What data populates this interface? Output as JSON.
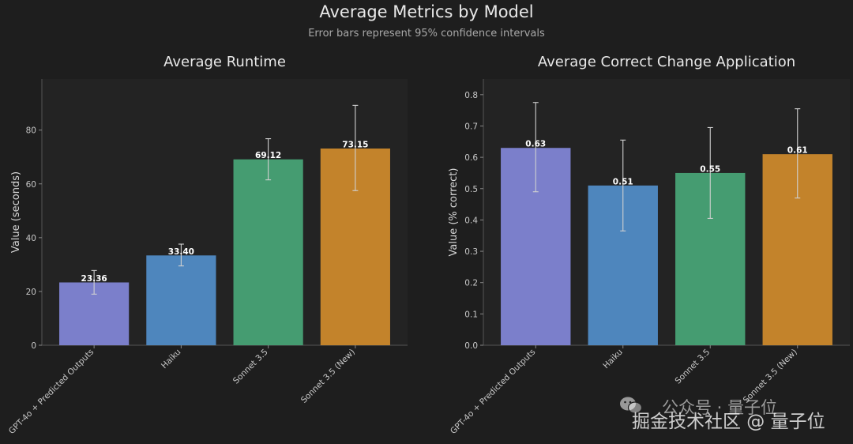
{
  "figure": {
    "title": "Average Metrics by Model",
    "subtitle": "Error bars represent 95% confidence intervals"
  },
  "colors": {
    "background": "#1e1e1e",
    "plot_bg": "#232323",
    "bars": [
      "#7b7fcb",
      "#4e86bd",
      "#459c71",
      "#c3832b"
    ],
    "errorbar": "#d0d0d0",
    "axis": "#555555",
    "text": "#c8c8c8"
  },
  "chart_data": [
    {
      "type": "bar",
      "title": "Average Runtime",
      "xlabel": "",
      "ylabel": "Value (seconds)",
      "categories": [
        "GPT-4o + Predicted Outputs",
        "Haiku",
        "Sonnet 3.5",
        "Sonnet 3.5 (New)"
      ],
      "values": [
        23.36,
        33.4,
        69.12,
        73.15
      ],
      "value_labels": [
        "23.36",
        "33.40",
        "69.12",
        "73.15"
      ],
      "error_low": [
        19.0,
        29.5,
        61.5,
        57.5
      ],
      "error_high": [
        27.8,
        37.6,
        76.8,
        89.2
      ],
      "ylim": [
        0,
        99
      ],
      "yticks": [
        0,
        20,
        40,
        60,
        80
      ],
      "ytick_labels": [
        "0",
        "20",
        "40",
        "60",
        "80"
      ]
    },
    {
      "type": "bar",
      "title": "Average Correct Change Application",
      "xlabel": "",
      "ylabel": "Value (% correct)",
      "categories": [
        "GPT-4o + Predicted Outputs",
        "Haiku",
        "Sonnet 3.5",
        "Sonnet 3.5 (New)"
      ],
      "values": [
        0.63,
        0.51,
        0.55,
        0.61
      ],
      "value_labels": [
        "0.63",
        "0.51",
        "0.55",
        "0.61"
      ],
      "error_low": [
        0.49,
        0.365,
        0.405,
        0.47
      ],
      "error_high": [
        0.775,
        0.655,
        0.695,
        0.755
      ],
      "ylim": [
        0,
        0.85
      ],
      "yticks": [
        0,
        0.1,
        0.2,
        0.3,
        0.4,
        0.5,
        0.6,
        0.7,
        0.8
      ],
      "ytick_labels": [
        "0.0",
        "0.1",
        "0.2",
        "0.3",
        "0.4",
        "0.5",
        "0.6",
        "0.7",
        "0.8"
      ]
    }
  ],
  "watermark": {
    "line1": "公众号 · 量子位",
    "line2": "掘金技术社区 @ 量子位"
  }
}
